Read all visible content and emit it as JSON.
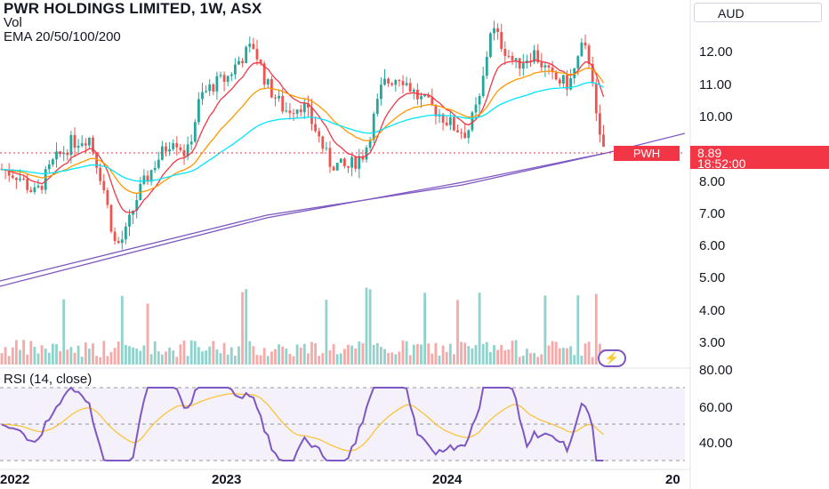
{
  "header": {
    "title": "PWR HOLDINGS LIMITED, 1W, ASX",
    "vol_label": "Vol",
    "ema_label": "EMA 20/50/100/200"
  },
  "currency": "AUD",
  "price_axis": [
    "12.00",
    "11.00",
    "10.00",
    "8.00",
    "7.00",
    "6.00",
    "5.00",
    "4.00",
    "3.00"
  ],
  "rsi_axis": [
    "80.00",
    "60.00",
    "40.00"
  ],
  "rsi_label": "RSI (14, close)",
  "price_badge": {
    "ticker": "PWH",
    "price": "8.89",
    "countdown": "18:52:00"
  },
  "time_axis": [
    "2022",
    "2023",
    "2024",
    "20"
  ],
  "colors": {
    "up": "#26a69a",
    "down": "#ef5350",
    "ema20": "#f23645",
    "ema50": "#ff9800",
    "ema100": "#00e5ff",
    "ema200": "#7e57c2",
    "rsi": "#7e57c2",
    "rsi_ma": "#fbc02d"
  },
  "bolt_icon": "lightning-icon"
}
